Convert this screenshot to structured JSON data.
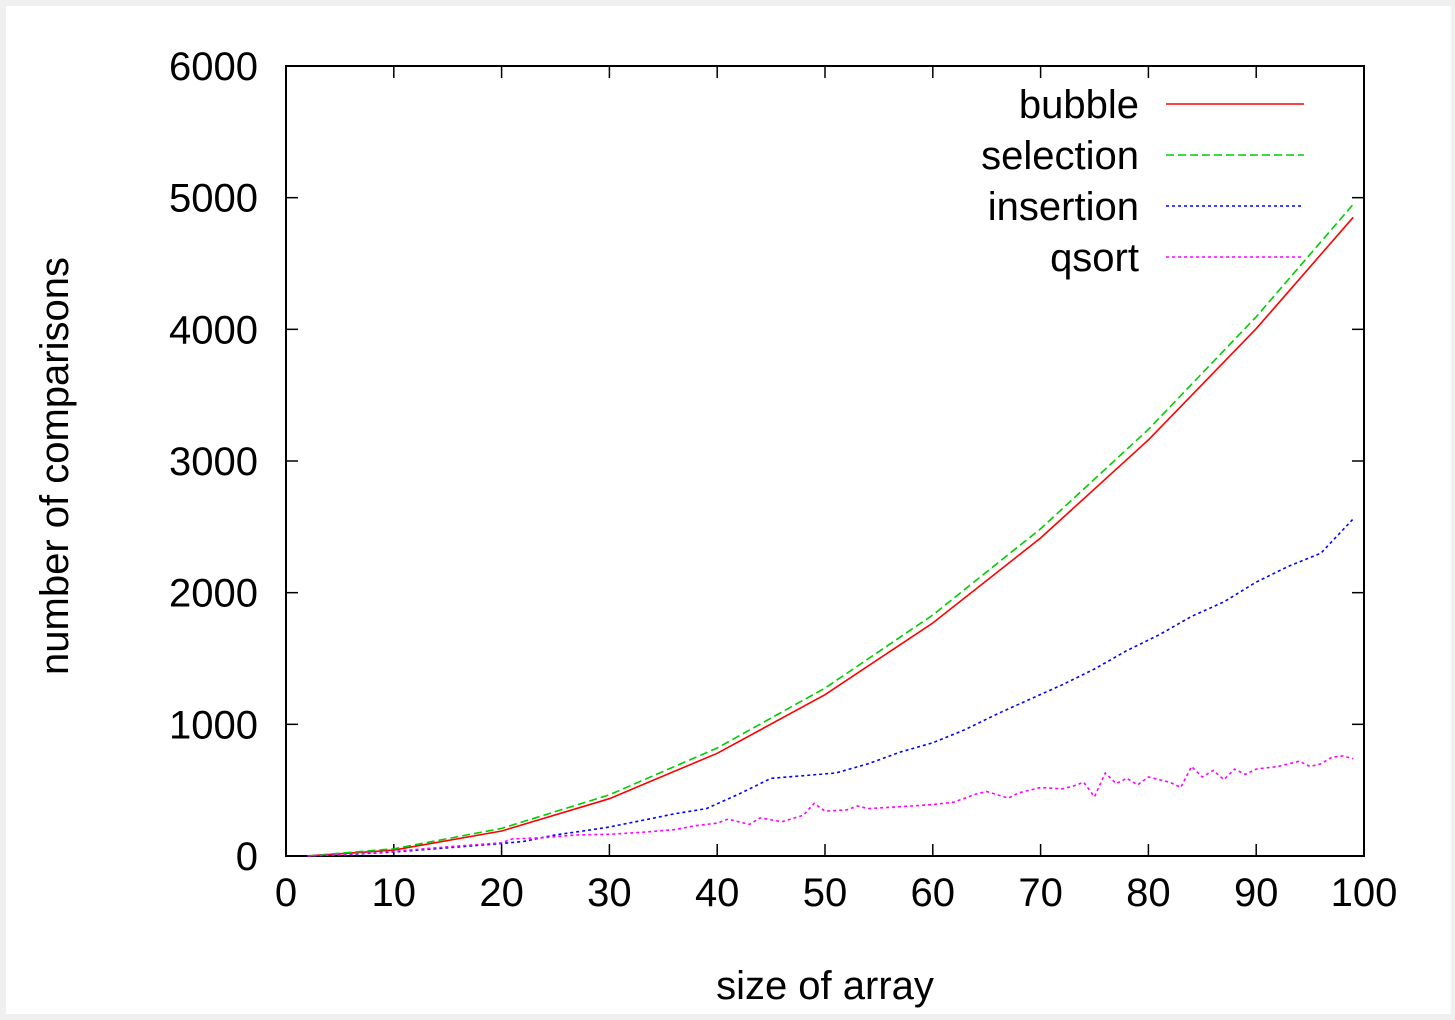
{
  "chart_data": {
    "type": "line",
    "title": "",
    "xlabel": "size of array",
    "ylabel": "number of comparisons",
    "xlim": [
      0,
      100
    ],
    "ylim": [
      0,
      6000
    ],
    "xticks": [
      "0",
      "10",
      "20",
      "30",
      "40",
      "50",
      "60",
      "70",
      "80",
      "90",
      "100"
    ],
    "yticks": [
      "0",
      "1000",
      "2000",
      "3000",
      "4000",
      "5000",
      "6000"
    ],
    "grid": false,
    "legend_position": "top-right",
    "series": [
      {
        "name": "bubble",
        "color": "#ff0000",
        "dash": "solid",
        "x": [
          2,
          10,
          20,
          30,
          40,
          50,
          60,
          70,
          80,
          90,
          99
        ],
        "y": [
          1,
          45,
          190,
          435,
          780,
          1225,
          1770,
          2415,
          3160,
          4005,
          4851
        ]
      },
      {
        "name": "selection",
        "color": "#00cc00",
        "dash": "dashed",
        "x": [
          2,
          10,
          20,
          30,
          40,
          50,
          60,
          70,
          80,
          90,
          99
        ],
        "y": [
          1,
          55,
          210,
          465,
          820,
          1275,
          1830,
          2485,
          3240,
          4095,
          4950
        ]
      },
      {
        "name": "insertion",
        "color": "#0000ff",
        "dash": "dotted",
        "x": [
          2,
          5,
          10,
          15,
          20,
          22,
          25,
          28,
          30,
          33,
          36,
          39,
          42,
          45,
          48,
          51,
          54,
          57,
          60,
          63,
          66,
          69,
          72,
          75,
          78,
          81,
          84,
          87,
          90,
          93,
          96,
          99
        ],
        "y": [
          1,
          8,
          30,
          62,
          95,
          110,
          160,
          195,
          220,
          270,
          320,
          360,
          470,
          590,
          610,
          630,
          700,
          790,
          860,
          960,
          1080,
          1190,
          1300,
          1420,
          1560,
          1680,
          1820,
          1930,
          2080,
          2200,
          2300,
          2560
        ]
      },
      {
        "name": "qsort",
        "color": "#ff00ff",
        "dash": "dotted",
        "x": [
          2,
          5,
          10,
          15,
          20,
          21,
          24,
          27,
          30,
          33,
          36,
          38,
          40,
          41,
          42,
          43,
          44,
          46,
          48,
          49,
          50,
          52,
          53,
          54,
          56,
          58,
          60,
          62,
          64,
          65,
          67,
          68,
          70,
          72,
          73,
          74,
          75,
          76,
          77,
          78,
          79,
          80,
          82,
          83,
          84,
          85,
          86,
          87,
          88,
          89,
          90,
          92,
          94,
          95,
          96,
          97,
          98,
          99
        ],
        "y": [
          1,
          10,
          35,
          70,
          100,
          130,
          140,
          160,
          165,
          180,
          200,
          230,
          250,
          280,
          260,
          240,
          290,
          260,
          310,
          400,
          340,
          350,
          380,
          360,
          370,
          380,
          390,
          410,
          470,
          490,
          440,
          480,
          520,
          510,
          530,
          560,
          450,
          630,
          550,
          590,
          540,
          600,
          560,
          520,
          680,
          600,
          650,
          580,
          660,
          620,
          660,
          680,
          720,
          680,
          700,
          750,
          760,
          740
        ]
      }
    ]
  }
}
